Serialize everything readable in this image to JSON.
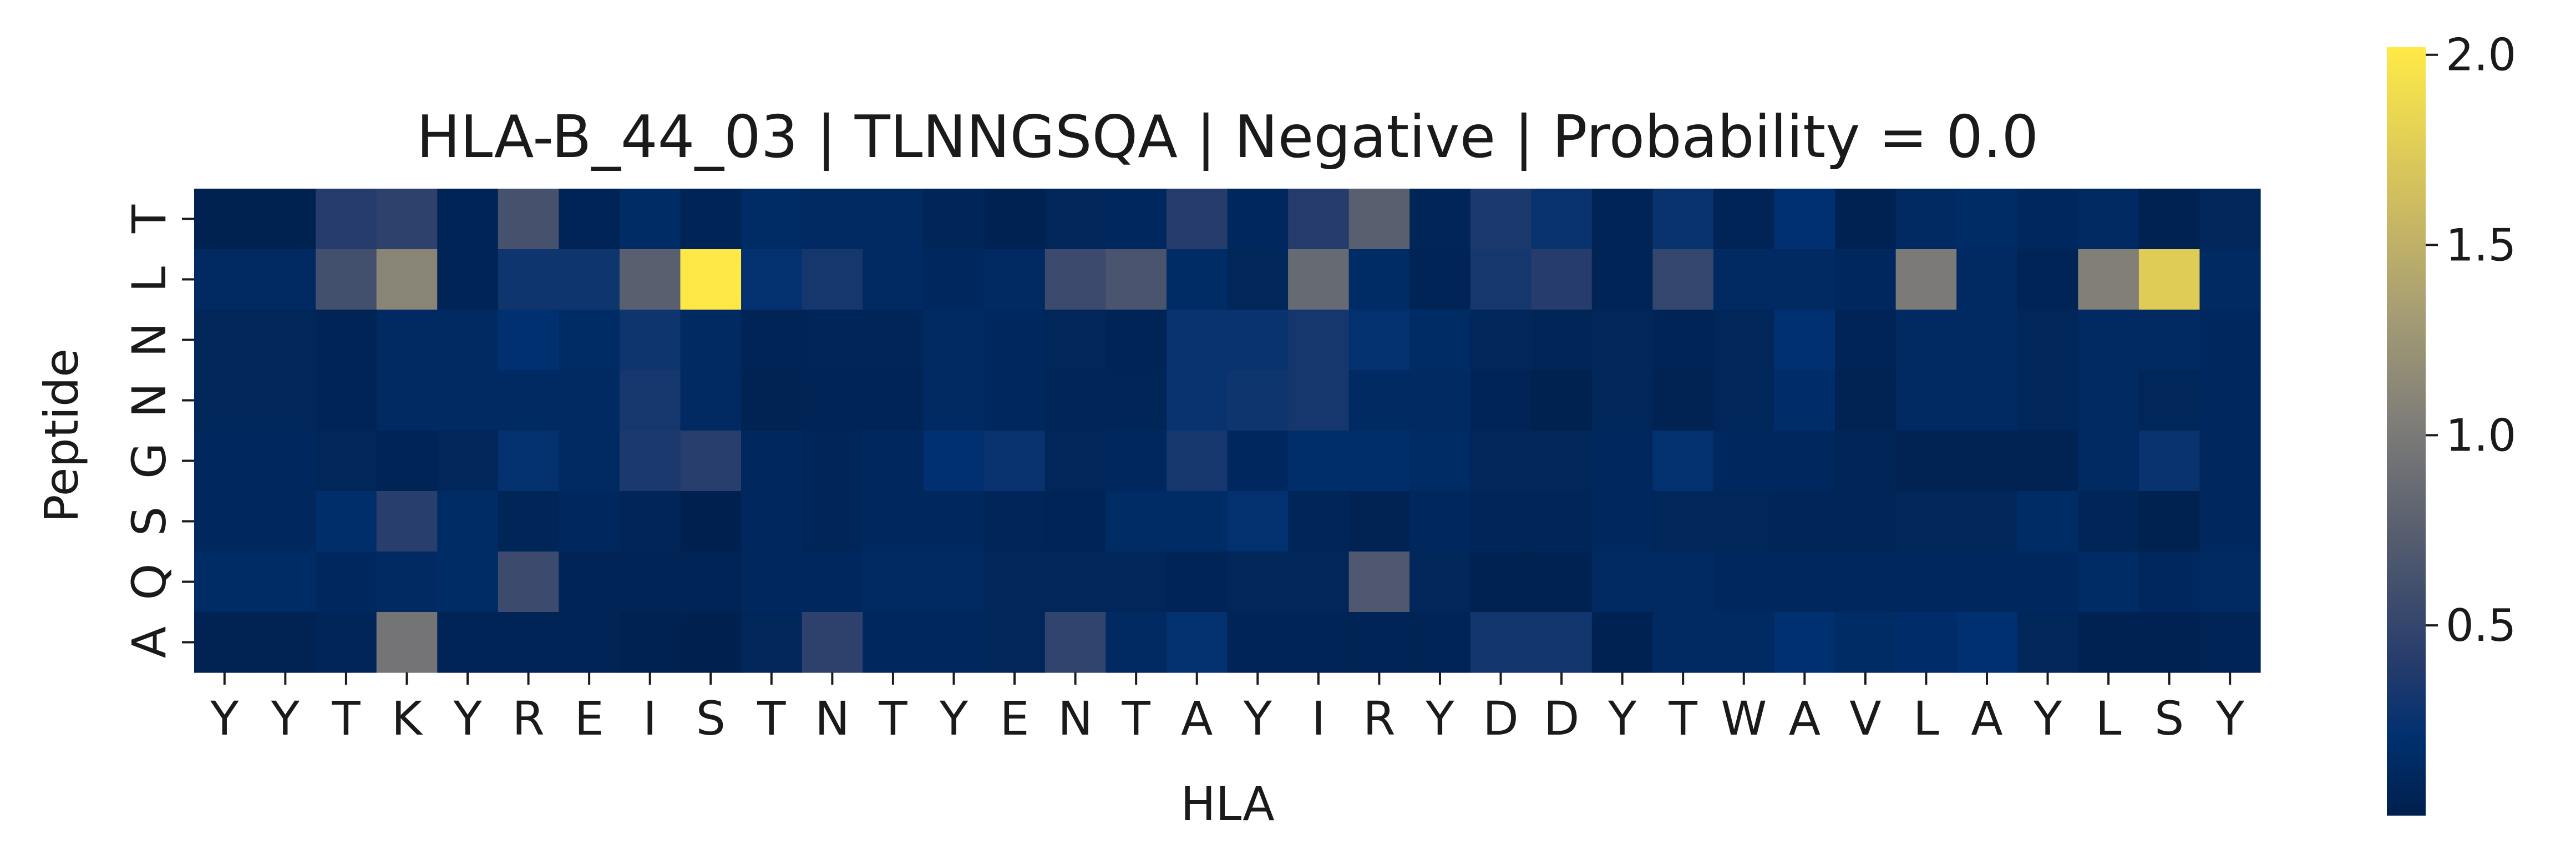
{
  "chart_data": {
    "type": "heatmap",
    "title": "HLA-B_44_03 | TLNNGSQA | Negative | Probability = 0.0",
    "xlabel": "HLA",
    "ylabel": "Peptide",
    "x": [
      "Y",
      "Y",
      "T",
      "K",
      "Y",
      "R",
      "E",
      "I",
      "S",
      "T",
      "N",
      "T",
      "Y",
      "E",
      "N",
      "T",
      "A",
      "Y",
      "I",
      "R",
      "Y",
      "D",
      "D",
      "Y",
      "T",
      "W",
      "A",
      "V",
      "L",
      "A",
      "Y",
      "L",
      "S",
      "Y"
    ],
    "y": [
      "T",
      "L",
      "N",
      "N",
      "G",
      "S",
      "Q",
      "A"
    ],
    "colormap": "cividis",
    "colorbar": {
      "ticks": [
        0.5,
        1.0,
        1.5,
        2.0
      ],
      "tick_labels": [
        "0.5",
        "1.0",
        "1.5",
        "2.0"
      ],
      "vmin": 0.0,
      "vmax": 2.02
    },
    "values": [
      [
        0.02,
        0.02,
        0.4,
        0.45,
        0.05,
        0.62,
        0.05,
        0.15,
        0.05,
        0.15,
        0.12,
        0.12,
        0.07,
        0.03,
        0.08,
        0.1,
        0.4,
        0.1,
        0.4,
        0.75,
        0.07,
        0.35,
        0.25,
        0.05,
        0.25,
        0.05,
        0.2,
        0.03,
        0.12,
        0.15,
        0.1,
        0.12,
        0.03,
        0.08
      ],
      [
        0.12,
        0.12,
        0.6,
        1.1,
        0.05,
        0.28,
        0.28,
        0.75,
        2.0,
        0.22,
        0.32,
        0.12,
        0.1,
        0.12,
        0.55,
        0.65,
        0.15,
        0.08,
        0.85,
        0.15,
        0.05,
        0.32,
        0.4,
        0.05,
        0.5,
        0.12,
        0.12,
        0.1,
        1.0,
        0.12,
        0.05,
        1.05,
        1.75,
        0.12
      ],
      [
        0.08,
        0.08,
        0.05,
        0.12,
        0.12,
        0.2,
        0.15,
        0.28,
        0.12,
        0.05,
        0.07,
        0.07,
        0.12,
        0.1,
        0.08,
        0.05,
        0.25,
        0.25,
        0.32,
        0.22,
        0.15,
        0.08,
        0.06,
        0.08,
        0.05,
        0.08,
        0.2,
        0.05,
        0.12,
        0.12,
        0.08,
        0.12,
        0.12,
        0.1
      ],
      [
        0.08,
        0.08,
        0.05,
        0.12,
        0.12,
        0.12,
        0.12,
        0.32,
        0.12,
        0.04,
        0.05,
        0.05,
        0.12,
        0.1,
        0.06,
        0.06,
        0.25,
        0.28,
        0.32,
        0.12,
        0.12,
        0.05,
        0.02,
        0.08,
        0.04,
        0.08,
        0.17,
        0.04,
        0.12,
        0.12,
        0.08,
        0.12,
        0.08,
        0.1
      ],
      [
        0.1,
        0.1,
        0.08,
        0.05,
        0.08,
        0.22,
        0.12,
        0.35,
        0.42,
        0.1,
        0.07,
        0.1,
        0.2,
        0.25,
        0.08,
        0.1,
        0.32,
        0.1,
        0.18,
        0.18,
        0.15,
        0.08,
        0.08,
        0.1,
        0.22,
        0.1,
        0.1,
        0.06,
        0.04,
        0.04,
        0.04,
        0.12,
        0.25,
        0.1
      ],
      [
        0.1,
        0.1,
        0.18,
        0.42,
        0.15,
        0.06,
        0.1,
        0.06,
        0.01,
        0.1,
        0.07,
        0.1,
        0.1,
        0.07,
        0.05,
        0.15,
        0.15,
        0.22,
        0.07,
        0.04,
        0.1,
        0.07,
        0.07,
        0.1,
        0.08,
        0.08,
        0.07,
        0.06,
        0.08,
        0.08,
        0.15,
        0.06,
        0.02,
        0.1
      ],
      [
        0.15,
        0.15,
        0.1,
        0.12,
        0.15,
        0.55,
        0.05,
        0.05,
        0.05,
        0.1,
        0.1,
        0.12,
        0.12,
        0.08,
        0.08,
        0.08,
        0.05,
        0.08,
        0.08,
        0.68,
        0.08,
        0.03,
        0.03,
        0.12,
        0.12,
        0.1,
        0.1,
        0.1,
        0.1,
        0.1,
        0.1,
        0.15,
        0.1,
        0.12
      ],
      [
        0.04,
        0.04,
        0.07,
        0.95,
        0.05,
        0.05,
        0.05,
        0.03,
        0.01,
        0.08,
        0.45,
        0.1,
        0.1,
        0.08,
        0.48,
        0.12,
        0.22,
        0.05,
        0.05,
        0.05,
        0.05,
        0.3,
        0.3,
        0.03,
        0.12,
        0.12,
        0.2,
        0.15,
        0.17,
        0.2,
        0.08,
        0.03,
        0.03,
        0.05
      ]
    ]
  }
}
